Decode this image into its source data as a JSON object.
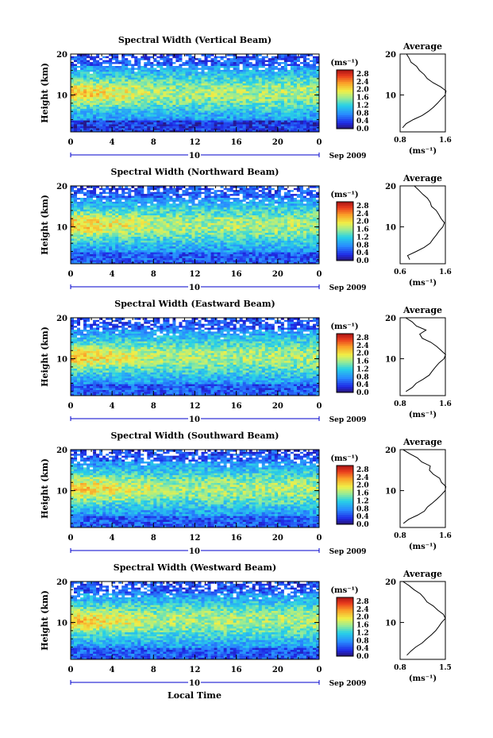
{
  "figure": {
    "xlabel": "Local Time",
    "date_label": "Sep 2009",
    "day_label": "10",
    "ylabel": "Height (km)",
    "avg_title": "Average",
    "cbar_unit": "(ms⁻¹)",
    "avg_xlabel": "(ms⁻¹)"
  },
  "chart_data": [
    {
      "type": "heatmap",
      "title": "Spectral Width (Vertical Beam)",
      "x_ticks": [
        "0",
        "4",
        "8",
        "12",
        "16",
        "20",
        "0"
      ],
      "x_range_hours": [
        0,
        24
      ],
      "y_ticks": [
        "20",
        "10"
      ],
      "y_range_km": [
        1,
        20
      ],
      "colorbar": {
        "ticks": [
          "2.8",
          "2.4",
          "2.0",
          "1.6",
          "1.2",
          "0.8",
          "0.4",
          "0.0"
        ],
        "range": [
          0,
          3.0
        ]
      },
      "avg_profile": {
        "xlim": [
          0.8,
          1.6
        ],
        "x_ticks": [
          "0.8",
          "1.6"
        ],
        "y_ticks": [
          "20",
          "10"
        ],
        "heights": [
          2,
          3,
          4,
          5,
          6,
          7,
          8,
          9,
          10,
          11,
          12,
          13,
          14,
          15,
          16,
          17,
          18,
          19,
          20
        ],
        "values": [
          0.85,
          0.9,
          1.05,
          1.2,
          1.3,
          1.38,
          1.45,
          1.52,
          1.58,
          1.6,
          1.5,
          1.4,
          1.3,
          1.22,
          1.15,
          1.1,
          1.0,
          0.95,
          0.92
        ]
      }
    },
    {
      "type": "heatmap",
      "title": "Spectral Width (Northward Beam)",
      "x_ticks": [
        "0",
        "4",
        "8",
        "12",
        "16",
        "20",
        "0"
      ],
      "x_range_hours": [
        0,
        24
      ],
      "y_ticks": [
        "20",
        "10"
      ],
      "y_range_km": [
        1,
        20
      ],
      "colorbar": {
        "ticks": [
          "2.8",
          "2.4",
          "2.0",
          "1.6",
          "1.2",
          "0.8",
          "0.4",
          "0.0"
        ],
        "range": [
          0,
          3.0
        ]
      },
      "avg_profile": {
        "xlim": [
          0.6,
          1.6
        ],
        "x_ticks": [
          "0.6",
          "1.6"
        ],
        "y_ticks": [
          "20",
          "10"
        ],
        "heights": [
          2,
          3,
          4,
          5,
          6,
          7,
          8,
          9,
          10,
          11,
          12,
          13,
          14,
          15,
          16,
          17,
          18,
          19,
          20
        ],
        "values": [
          0.8,
          0.75,
          0.95,
          1.15,
          1.25,
          1.32,
          1.4,
          1.48,
          1.55,
          1.58,
          1.5,
          1.45,
          1.38,
          1.3,
          1.25,
          1.2,
          1.1,
          1.0,
          0.9
        ]
      }
    },
    {
      "type": "heatmap",
      "title": "Spectral Width (Eastward Beam)",
      "x_ticks": [
        "0",
        "4",
        "8",
        "12",
        "16",
        "20",
        "0"
      ],
      "x_range_hours": [
        0,
        24
      ],
      "y_ticks": [
        "20",
        "10"
      ],
      "y_range_km": [
        1,
        20
      ],
      "colorbar": {
        "ticks": [
          "2.8",
          "2.4",
          "2.0",
          "1.6",
          "1.2",
          "0.8",
          "0.4",
          "0.0"
        ],
        "range": [
          0,
          3.0
        ]
      },
      "avg_profile": {
        "xlim": [
          0.8,
          1.6
        ],
        "x_ticks": [
          "0.8",
          "1.6"
        ],
        "y_ticks": [
          "20",
          "10"
        ],
        "heights": [
          2,
          3,
          4,
          5,
          6,
          7,
          8,
          9,
          10,
          11,
          12,
          13,
          14,
          15,
          16,
          17,
          18,
          19,
          20
        ],
        "values": [
          0.9,
          1.0,
          1.1,
          1.2,
          1.3,
          1.36,
          1.42,
          1.5,
          1.56,
          1.6,
          1.52,
          1.46,
          1.35,
          1.2,
          1.15,
          1.25,
          1.1,
          1.0,
          0.9
        ]
      }
    },
    {
      "type": "heatmap",
      "title": "Spectral Width (Southward Beam)",
      "x_ticks": [
        "0",
        "4",
        "8",
        "12",
        "16",
        "20",
        "0"
      ],
      "x_range_hours": [
        0,
        24
      ],
      "y_ticks": [
        "20",
        "10"
      ],
      "y_range_km": [
        1,
        20
      ],
      "colorbar": {
        "ticks": [
          "2.8",
          "2.4",
          "2.0",
          "1.6",
          "1.2",
          "0.8",
          "0.4",
          "0.0"
        ],
        "range": [
          0,
          3.0
        ]
      },
      "avg_profile": {
        "xlim": [
          0.8,
          1.6
        ],
        "x_ticks": [
          "0.8",
          "1.6"
        ],
        "y_ticks": [
          "20",
          "10"
        ],
        "heights": [
          2,
          3,
          4,
          5,
          6,
          7,
          8,
          9,
          10,
          11,
          12,
          13,
          14,
          15,
          16,
          17,
          18,
          19,
          20
        ],
        "values": [
          0.85,
          0.95,
          1.1,
          1.22,
          1.3,
          1.38,
          1.45,
          1.52,
          1.58,
          1.6,
          1.55,
          1.48,
          1.4,
          1.3,
          1.35,
          1.2,
          1.1,
          0.95,
          0.85
        ]
      }
    },
    {
      "type": "heatmap",
      "title": "Spectral Width (Westward Beam)",
      "x_ticks": [
        "0",
        "4",
        "8",
        "12",
        "16",
        "20",
        "0"
      ],
      "x_range_hours": [
        0,
        24
      ],
      "y_ticks": [
        "20",
        "10"
      ],
      "y_range_km": [
        1,
        20
      ],
      "colorbar": {
        "ticks": [
          "2.8",
          "2.4",
          "2.0",
          "1.6",
          "1.2",
          "0.8",
          "0.4",
          "0.0"
        ],
        "range": [
          0,
          3.0
        ]
      },
      "avg_profile": {
        "xlim": [
          0.8,
          1.5
        ],
        "x_ticks": [
          "0.8",
          "1.5"
        ],
        "y_ticks": [
          "20",
          "10"
        ],
        "heights": [
          2,
          3,
          4,
          5,
          6,
          7,
          8,
          9,
          10,
          11,
          12,
          13,
          14,
          15,
          16,
          17,
          18,
          19,
          20
        ],
        "values": [
          0.9,
          0.95,
          1.05,
          1.15,
          1.22,
          1.28,
          1.35,
          1.4,
          1.45,
          1.5,
          1.45,
          1.38,
          1.3,
          1.2,
          1.15,
          1.1,
          1.0,
          0.95,
          0.85
        ]
      }
    }
  ]
}
